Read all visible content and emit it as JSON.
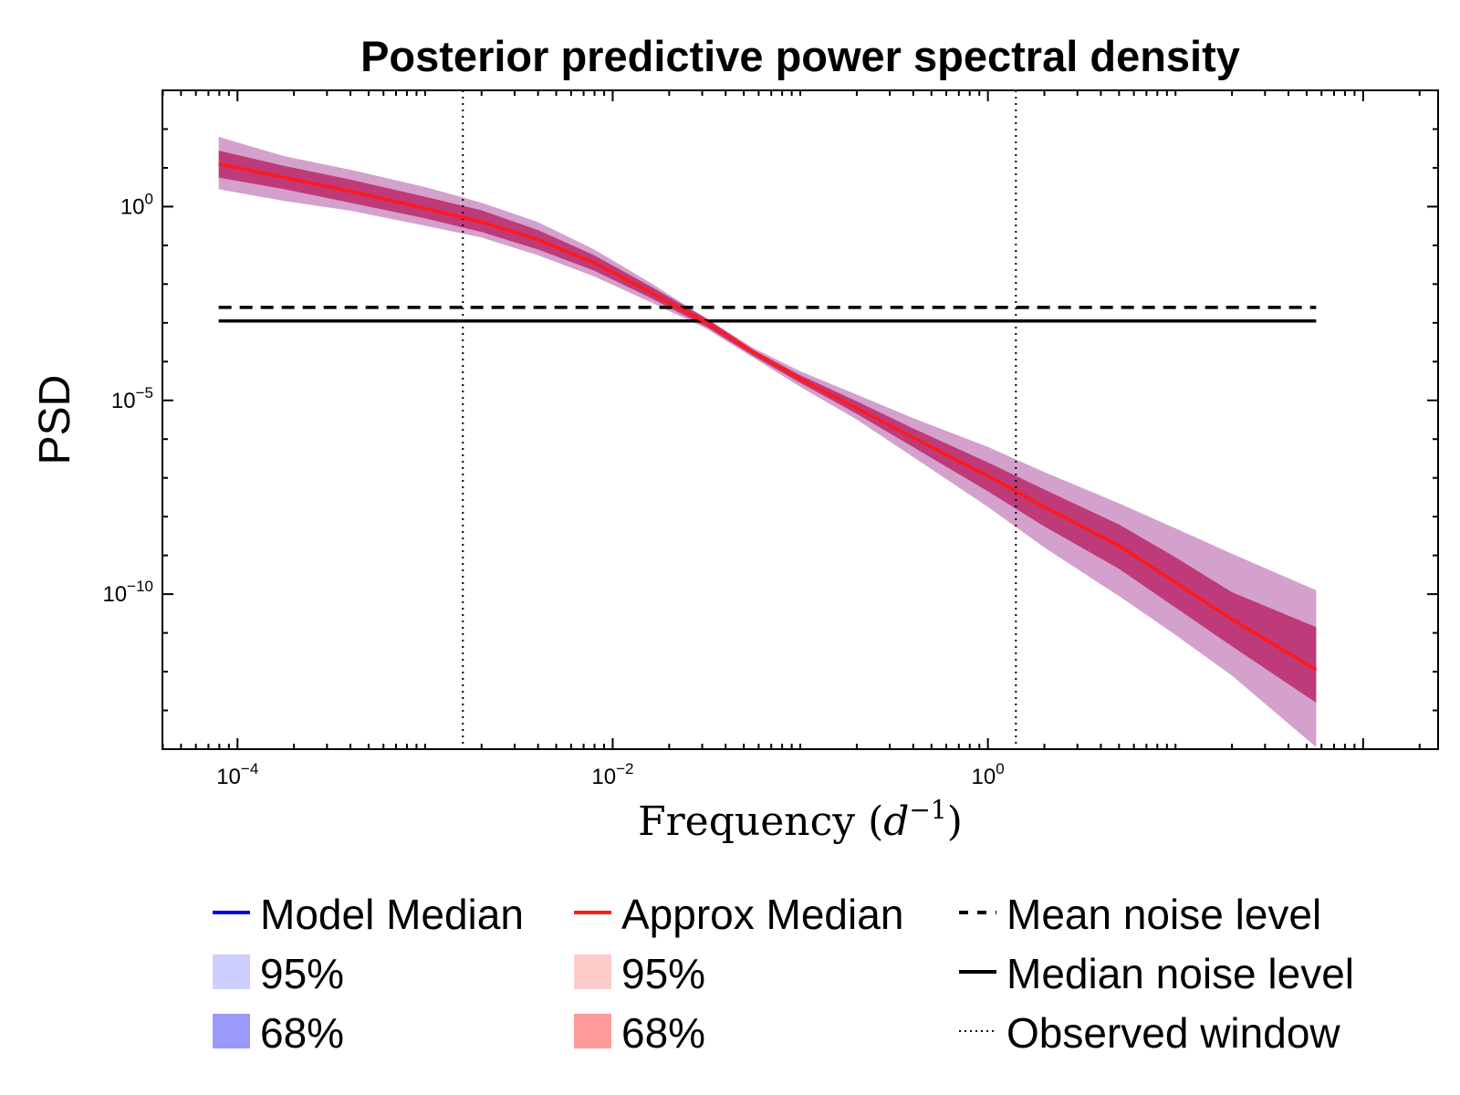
{
  "chart_data": {
    "type": "line",
    "title": "Posterior predictive power spectral density",
    "xlabel": "Frequency (d⁻¹)",
    "xlabel_main": "Frequency (",
    "xlabel_var": "d",
    "xlabel_exp": "−1",
    "xlabel_close": ")",
    "ylabel": "PSD",
    "x_scale": "log",
    "y_scale": "log",
    "xlim": [
      3.98e-05,
      251
    ],
    "ylim": [
      1e-14,
      1000.0
    ],
    "x_ticks": [
      {
        "base": "10",
        "exp": "−4",
        "value": 0.0001
      },
      {
        "base": "10",
        "exp": "−2",
        "value": 0.01
      },
      {
        "base": "10",
        "exp": "0",
        "value": 1
      }
    ],
    "y_ticks": [
      {
        "base": "10",
        "exp": "0",
        "value": 1
      },
      {
        "base": "10",
        "exp": "−5",
        "value": 1e-05
      },
      {
        "base": "10",
        "exp": "−10",
        "value": 1e-10
      }
    ],
    "series": [
      {
        "name": "Approx Median",
        "color": "#ff1a1a",
        "x": [
          7.94e-05,
          0.000178,
          0.000398,
          0.001,
          0.002,
          0.00398,
          0.00794,
          0.0158,
          0.0316,
          0.0562,
          0.1,
          0.2,
          0.398,
          1,
          2,
          5,
          10,
          20,
          56.2
        ],
        "y": [
          12.6,
          5.6,
          2.5,
          0.9,
          0.4,
          0.141,
          0.0355,
          0.0063,
          0.001,
          0.000178,
          3.55e-05,
          6.3e-06,
          1.1e-06,
          1.12e-07,
          1.78e-08,
          1.78e-09,
          2e-10,
          2.24e-11,
          1.12e-12
        ]
      }
    ],
    "bands": [
      {
        "name": "95%",
        "color": "#d4a0cc",
        "x": [
          7.94e-05,
          0.000178,
          0.000398,
          0.001,
          0.002,
          0.00398,
          0.00794,
          0.0158,
          0.0316,
          0.0562,
          0.1,
          0.2,
          0.398,
          1,
          2,
          5,
          10,
          20,
          56.2
        ],
        "upper": [
          63,
          20,
          9,
          3.2,
          1.26,
          0.4,
          0.079,
          0.011,
          0.0013,
          0.000224,
          5.62e-05,
          1.41e-05,
          3.5e-06,
          6.3e-07,
          1.41e-07,
          2.2e-08,
          5e-09,
          1.1e-09,
          1.26e-10
        ],
        "lower": [
          2.8,
          1.4,
          0.79,
          0.32,
          0.16,
          0.056,
          0.0158,
          0.0035,
          0.00071,
          0.000126,
          2.24e-05,
          3.2e-06,
          3.5e-07,
          1.78e-08,
          1.6e-09,
          8.9e-11,
          8.9e-12,
          7.9e-13,
          1.12e-14
        ]
      },
      {
        "name": "68%",
        "color": "#bf3a78",
        "x": [
          7.94e-05,
          0.000178,
          0.000398,
          0.001,
          0.002,
          0.00398,
          0.00794,
          0.0158,
          0.0316,
          0.0562,
          0.1,
          0.2,
          0.398,
          1,
          2,
          5,
          10,
          20,
          56.2
        ],
        "upper": [
          28,
          11.2,
          5,
          1.8,
          0.8,
          0.25,
          0.056,
          0.0089,
          0.0013,
          0.0002,
          4.47e-05,
          9.5e-06,
          1.9e-06,
          2.51e-07,
          5.01e-08,
          6.3e-09,
          8.9e-10,
          1.12e-10,
          1.41e-11
        ],
        "lower": [
          5.6,
          2.8,
          1.26,
          0.5,
          0.22,
          0.079,
          0.0224,
          0.0045,
          0.00079,
          0.000141,
          2.82e-05,
          4.5e-06,
          6.3e-07,
          4.5e-08,
          5.6e-09,
          4.5e-10,
          4.5e-11,
          4.5e-12,
          1.58e-13
        ]
      }
    ],
    "hlines": [
      {
        "name": "Mean noise level",
        "value": 0.00251,
        "style": "dashed",
        "color": "#000000"
      },
      {
        "name": "Median noise level",
        "value": 0.00112,
        "style": "solid",
        "color": "#000000"
      }
    ],
    "vlines": [
      {
        "name": "Observed window",
        "values": [
          0.00159,
          1.41
        ],
        "style": "dotted",
        "color": "#000000"
      }
    ],
    "legend": {
      "placement": "bottom",
      "columns": [
        [
          {
            "label": "Model Median",
            "kind": "line",
            "color": "#0000ee"
          },
          {
            "label": "95%",
            "kind": "patch",
            "color": "#cccfff"
          },
          {
            "label": "68%",
            "kind": "patch",
            "color": "#9a9afa"
          }
        ],
        [
          {
            "label": "Approx Median",
            "kind": "line",
            "color": "#ff1a1a"
          },
          {
            "label": "95%",
            "kind": "patch",
            "color": "#ffcccc"
          },
          {
            "label": "68%",
            "kind": "patch",
            "color": "#ff9a9a"
          }
        ],
        [
          {
            "label": "Mean noise level",
            "kind": "dashed",
            "color": "#000000"
          },
          {
            "label": "Median noise level",
            "kind": "solid",
            "color": "#000000"
          },
          {
            "label": "Observed window",
            "kind": "dotted",
            "color": "#000000"
          }
        ]
      ]
    }
  }
}
